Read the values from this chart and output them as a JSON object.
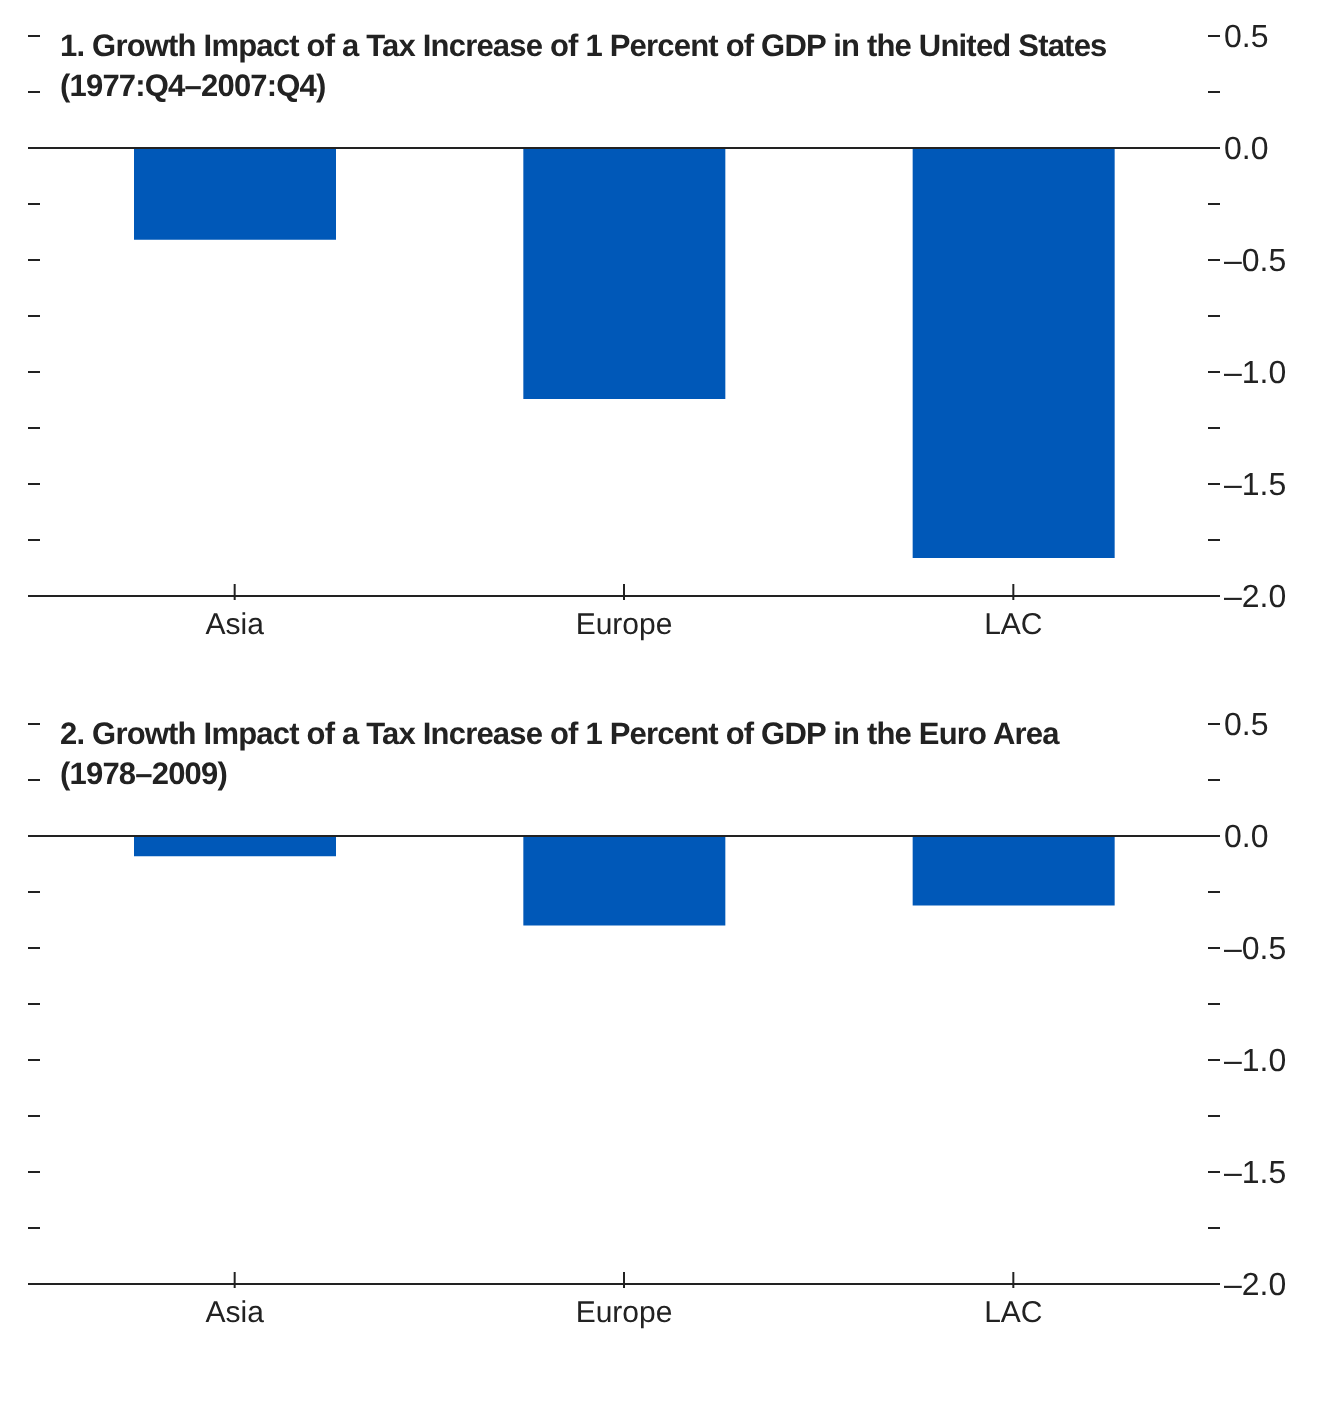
{
  "chart_data": [
    {
      "type": "bar",
      "title": "1. Growth Impact of a Tax Increase of 1 Percent of GDP in the United States",
      "subtitle": "(1977:Q4–2007:Q4)",
      "categories": [
        "Asia",
        "Europe",
        "LAC"
      ],
      "values": [
        -0.41,
        -1.12,
        -1.83
      ],
      "color": "#0058b8",
      "ylim": [
        -2,
        0.5
      ],
      "yticks": [
        {
          "value": 0.5,
          "label": "0.5"
        },
        {
          "value": 0.25,
          "label": null
        },
        {
          "value": 0,
          "label": "0.0"
        },
        {
          "value": -0.25,
          "label": null
        },
        {
          "value": -0.5,
          "label": "–0.5"
        },
        {
          "value": -0.75,
          "label": null
        },
        {
          "value": -1,
          "label": "–1.0"
        },
        {
          "value": -1.25,
          "label": null
        },
        {
          "value": -1.5,
          "label": "–1.5"
        },
        {
          "value": -1.75,
          "label": null
        },
        {
          "value": -2,
          "label": "–2.0"
        }
      ],
      "ref_lines": [
        {
          "axis": "y",
          "value": 0,
          "label": null
        }
      ],
      "grid": false,
      "legend": false
    },
    {
      "type": "bar",
      "title": "2. Growth Impact of a Tax Increase of 1 Percent of GDP in the Euro Area",
      "subtitle": "(1978–2009)",
      "categories": [
        "Asia",
        "Europe",
        "LAC"
      ],
      "values": [
        -0.09,
        -0.4,
        -0.31
      ],
      "color": "#0058b8",
      "ylim": [
        -2,
        0.5
      ],
      "yticks": [
        {
          "value": 0.5,
          "label": "0.5"
        },
        {
          "value": 0.25,
          "label": null
        },
        {
          "value": 0,
          "label": "0.0"
        },
        {
          "value": -0.25,
          "label": null
        },
        {
          "value": -0.5,
          "label": "–0.5"
        },
        {
          "value": -0.75,
          "label": null
        },
        {
          "value": -1,
          "label": "–1.0"
        },
        {
          "value": -1.25,
          "label": null
        },
        {
          "value": -1.5,
          "label": "–1.5"
        },
        {
          "value": -1.75,
          "label": null
        },
        {
          "value": -2,
          "label": "–2.0"
        }
      ],
      "ref_lines": [
        {
          "axis": "y",
          "value": 0,
          "label": null
        }
      ],
      "grid": false,
      "legend": false
    }
  ]
}
